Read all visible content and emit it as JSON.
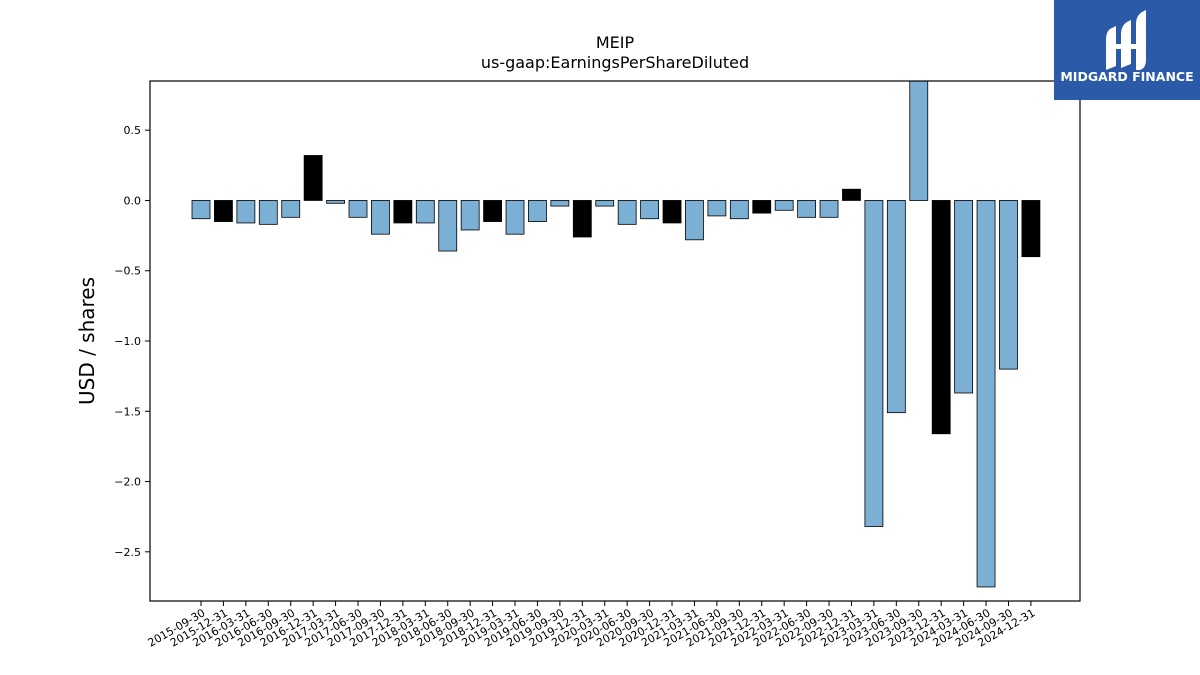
{
  "chart_data": {
    "type": "bar",
    "title": "MEIP",
    "subtitle": "us-gaap:EarningsPerShareDiluted",
    "xlabel": "",
    "ylabel": "USD / shares",
    "ylim": [
      -2.85,
      0.85
    ],
    "yticks": [
      0.5,
      0.0,
      -0.5,
      -1.0,
      -1.5,
      -2.0,
      -2.5
    ],
    "ytick_labels": [
      "0.5",
      "0.0",
      "−0.5",
      "−1.0",
      "−1.5",
      "−2.0",
      "−2.5"
    ],
    "grid": false,
    "colors": {
      "quarter": "#7bafd4",
      "annual": "#000000",
      "edge": "#000000"
    },
    "categories": [
      "2015-09-30",
      "2015-12-31",
      "2016-03-31",
      "2016-06-30",
      "2016-09-30",
      "2016-12-31",
      "2017-03-31",
      "2017-06-30",
      "2017-09-30",
      "2017-12-31",
      "2018-03-31",
      "2018-06-30",
      "2018-09-30",
      "2018-12-31",
      "2019-03-31",
      "2019-06-30",
      "2019-09-30",
      "2019-12-31",
      "2020-03-31",
      "2020-06-30",
      "2020-09-30",
      "2020-12-31",
      "2021-03-31",
      "2021-06-30",
      "2021-09-30",
      "2021-12-31",
      "2022-03-31",
      "2022-06-30",
      "2022-09-30",
      "2022-12-31",
      "2023-03-31",
      "2023-06-30",
      "2023-09-30",
      "2023-12-31",
      "2024-03-31",
      "2024-06-30",
      "2024-09-30",
      "2024-12-31"
    ],
    "values": [
      -0.13,
      -0.15,
      -0.16,
      -0.17,
      -0.12,
      0.32,
      -0.02,
      -0.12,
      -0.24,
      -0.16,
      -0.16,
      -0.36,
      -0.21,
      -0.15,
      -0.24,
      -0.15,
      -0.04,
      -0.26,
      -0.04,
      -0.17,
      -0.13,
      -0.16,
      -0.28,
      -0.11,
      -0.13,
      -0.09,
      -0.07,
      -0.12,
      -0.12,
      0.08,
      -2.32,
      -1.51,
      0.85,
      -1.66,
      -1.37,
      -2.75,
      -1.2,
      -0.4
    ],
    "bar_kind": [
      "q",
      "a",
      "q",
      "q",
      "q",
      "a",
      "q",
      "q",
      "q",
      "a",
      "q",
      "q",
      "q",
      "a",
      "q",
      "q",
      "q",
      "a",
      "q",
      "q",
      "q",
      "a",
      "q",
      "q",
      "q",
      "a",
      "q",
      "q",
      "q",
      "a",
      "q",
      "q",
      "q",
      "a",
      "q",
      "q",
      "q",
      "a"
    ]
  },
  "logo": {
    "text": "MIDGARD FINANCE",
    "icon": "midgard-logo-icon",
    "bg_color": "#2b5aa8"
  }
}
